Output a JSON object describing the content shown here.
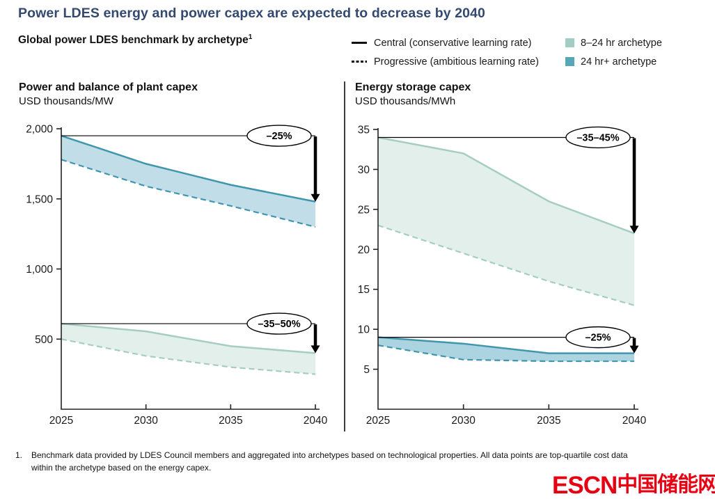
{
  "page": {
    "title": "Power LDES energy and power capex are expected to decrease by 2040",
    "subtitle": "Global power LDES benchmark by archetype",
    "subtitle_footnote_mark": "1",
    "footnote_number": "1.",
    "footnote_text": "Benchmark data provided by LDES Council members and aggregated into archetypes based on technological properties. All data points are top-quartile cost data within the archetype based on the energy capex.",
    "watermark_latin": "ESCN",
    "watermark_cjk": "中国储能网"
  },
  "colors": {
    "title_navy": "#33496f",
    "archetype_8_24hr": "#a0cec5",
    "archetype_24hr_plus": "#58a7b9",
    "watermark_red": "#e60012"
  },
  "legend": {
    "line_items": [
      {
        "style": "solid",
        "label": "Central (conservative learning rate)"
      },
      {
        "style": "dashed",
        "label": "Progressive (ambitious learning rate)"
      }
    ],
    "swatch_items": [
      {
        "color": "#a0cec5",
        "label": "8–24 hr archetype"
      },
      {
        "color": "#58a7b9",
        "label": "24 hr+ archetype"
      }
    ]
  },
  "chart_data": [
    {
      "type": "area",
      "title": "Power and balance of plant capex",
      "ylabel": "USD thousands/MW",
      "x": [
        2025,
        2030,
        2035,
        2040
      ],
      "xlim": [
        2025,
        2040
      ],
      "ylim": [
        0,
        2000
      ],
      "grid": false,
      "yticks": [
        {
          "value": 500,
          "label": "500"
        },
        {
          "value": 1000,
          "label": "1,000"
        },
        {
          "value": 1500,
          "label": "1,500"
        },
        {
          "value": 2000,
          "label": "2,000"
        }
      ],
      "bands": [
        {
          "archetype": "24 hr+ archetype",
          "fill": "#c1dde8",
          "line_color": "#3f96ad",
          "series": {
            "central": [
              1950,
              1750,
              1600,
              1480
            ],
            "progressive": [
              1780,
              1590,
              1450,
              1300
            ]
          },
          "annotation": {
            "label": "–25%",
            "baseline_value": 1950,
            "arrow_to_value": 1480
          }
        },
        {
          "archetype": "8–24 hr archetype",
          "fill": "#e3efeb",
          "line_color": "#a5cdc3",
          "series": {
            "central": [
              610,
              555,
              450,
              400
            ],
            "progressive": [
              500,
              380,
              300,
              250
            ]
          },
          "annotation": {
            "label": "–35–50%",
            "baseline_value": 610,
            "arrow_to_value": 400
          }
        }
      ]
    },
    {
      "type": "area",
      "title": "Energy storage capex",
      "ylabel": "USD thousands/MWh",
      "x": [
        2025,
        2030,
        2035,
        2040
      ],
      "xlim": [
        2025,
        2040
      ],
      "ylim": [
        0,
        35
      ],
      "grid": false,
      "yticks": [
        {
          "value": 5,
          "label": "5"
        },
        {
          "value": 10,
          "label": "10"
        },
        {
          "value": 15,
          "label": "15"
        },
        {
          "value": 20,
          "label": "20"
        },
        {
          "value": 25,
          "label": "25"
        },
        {
          "value": 30,
          "label": "30"
        },
        {
          "value": 35,
          "label": "35"
        }
      ],
      "bands": [
        {
          "archetype": "8–24 hr archetype",
          "fill": "#e3efeb",
          "line_color": "#a5cdc3",
          "series": {
            "central": [
              34,
              32,
              26,
              22
            ],
            "progressive": [
              23,
              19.5,
              16,
              13
            ]
          },
          "annotation": {
            "label": "–35–45%",
            "baseline_value": 34,
            "arrow_to_value": 22
          }
        },
        {
          "archetype": "24 hr+ archetype",
          "fill": "#abd3e0",
          "line_color": "#3f96ad",
          "series": {
            "central": [
              9,
              8.2,
              7,
              7
            ],
            "progressive": [
              8,
              6.2,
              6,
              6
            ]
          },
          "annotation": {
            "label": "–25%",
            "baseline_value": 9,
            "arrow_to_value": 7
          }
        }
      ]
    }
  ]
}
